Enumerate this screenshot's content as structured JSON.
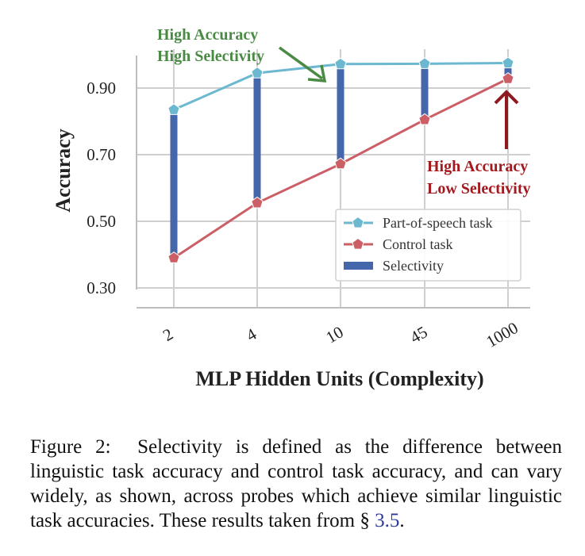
{
  "chart_data": {
    "type": "line",
    "categories": [
      "2",
      "4",
      "10",
      "45",
      "1000"
    ],
    "series": [
      {
        "name": "Part-of-speech task",
        "values": [
          0.835,
          0.945,
          0.972,
          0.973,
          0.975
        ],
        "color": "#6cb8d1"
      },
      {
        "name": "Control task",
        "values": [
          0.39,
          0.555,
          0.672,
          0.805,
          0.928
        ],
        "color": "#cc5f66"
      },
      {
        "name": "Selectivity",
        "kind": "bar-span",
        "color": "#4466aa"
      }
    ],
    "xlabel": "MLP Hidden Units (Complexity)",
    "ylabel": "Accuracy",
    "yticks": [
      "0.30",
      "0.50",
      "0.70",
      "0.90"
    ],
    "ytick_values": [
      0.3,
      0.5,
      0.7,
      0.9
    ],
    "ylim": [
      0.295,
      1.0
    ],
    "grid": true,
    "legend_position": "lower-right",
    "annotations": [
      {
        "lines": [
          "High Accuracy",
          "High Selectivity"
        ],
        "color": "#4a8a45",
        "points_to": "10"
      },
      {
        "lines": [
          "High Accuracy",
          "Low Selectivity"
        ],
        "color": "#a3191e",
        "points_to": "1000"
      }
    ]
  },
  "caption": {
    "label": "Figure 2:",
    "text": "Selectivity is defined as the difference between linguistic task accuracy and control task accuracy, and can vary widely, as shown, across probes which achieve similar linguistic task accuracies. These results taken from §",
    "ref": "3.5",
    "end": "."
  }
}
